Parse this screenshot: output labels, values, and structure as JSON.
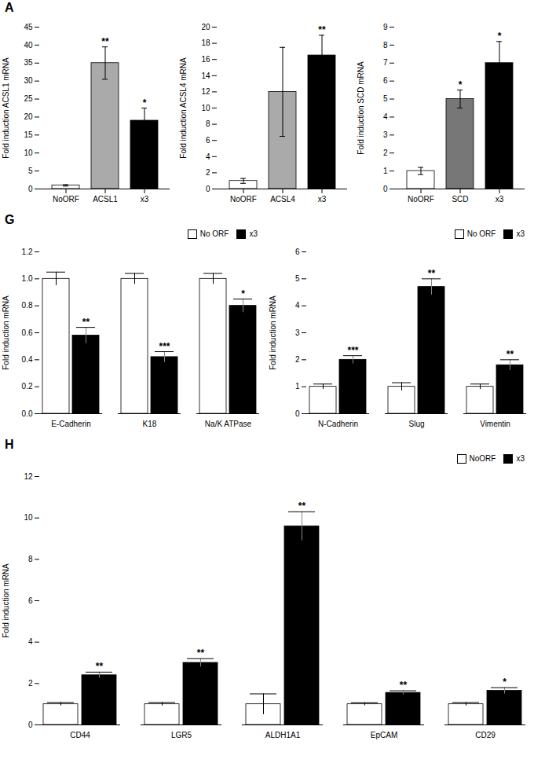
{
  "chart_data": [
    {
      "type": "bar",
      "title": "A",
      "categories": [
        "NoORF",
        "ACSL1",
        "x3"
      ],
      "values": [
        1,
        35,
        19
      ],
      "errors": [
        0.2,
        4.5,
        3.5
      ],
      "colors": [
        "white",
        "#aaaaaa",
        "black"
      ],
      "ylabel": "Fold induction ACSL1 mRNA",
      "ylim": [
        0,
        45
      ],
      "yticks": [
        0,
        5,
        10,
        15,
        20,
        25,
        30,
        35,
        40,
        45
      ],
      "annotations": [
        {
          "category": "ACSL1",
          "text": "**"
        },
        {
          "category": "x3",
          "text": "*"
        }
      ]
    },
    {
      "type": "bar",
      "categories": [
        "NoORF",
        "ACSL4",
        "x3"
      ],
      "values": [
        1,
        12,
        16.5
      ],
      "errors": [
        0.3,
        5.5,
        2.5
      ],
      "colors": [
        "white",
        "#aaaaaa",
        "black"
      ],
      "ylabel": "Fold induction ACSL4 mRNA",
      "ylim": [
        0,
        20
      ],
      "yticks": [
        0,
        2,
        4,
        6,
        8,
        10,
        12,
        14,
        16,
        18,
        20
      ],
      "annotations": [
        {
          "category": "x3",
          "text": "**"
        }
      ]
    },
    {
      "type": "bar",
      "categories": [
        "NoORF",
        "SCD",
        "x3"
      ],
      "values": [
        1,
        5,
        7
      ],
      "errors": [
        0.2,
        0.5,
        1.2
      ],
      "colors": [
        "white",
        "#777777",
        "black"
      ],
      "ylabel": "Fold induction SCD mRNA",
      "ylim": [
        0,
        9
      ],
      "yticks": [
        0,
        1,
        2,
        3,
        4,
        5,
        6,
        7,
        8,
        9
      ],
      "annotations": [
        {
          "category": "SCD",
          "text": "*"
        },
        {
          "category": "x3",
          "text": "*"
        }
      ]
    },
    {
      "type": "bar",
      "title": "G",
      "categories": [
        "E-Cadherin",
        "K18",
        "Na/K ATPase"
      ],
      "series": [
        {
          "name": "No ORF",
          "color": "white",
          "values": [
            1.0,
            1.0,
            1.0
          ],
          "errors": [
            0.05,
            0.04,
            0.04
          ]
        },
        {
          "name": "x3",
          "color": "black",
          "values": [
            0.58,
            0.42,
            0.8
          ],
          "errors": [
            0.06,
            0.04,
            0.05
          ]
        }
      ],
      "ylabel": "Fold induction mRNA",
      "ylim": [
        0,
        1.2
      ],
      "yticks": [
        {
          "value": 0,
          "label": "0.0"
        },
        0.2,
        0.4,
        0.6,
        0.8,
        {
          "value": 1.0,
          "label": "1.0"
        },
        1.2
      ],
      "legend": "upper right",
      "annotations": [
        {
          "category": "E-Cadherin",
          "series": "x3",
          "text": "**"
        },
        {
          "category": "K18",
          "series": "x3",
          "text": "***"
        },
        {
          "category": "Na/K ATPase",
          "series": "x3",
          "text": "*"
        }
      ]
    },
    {
      "type": "bar",
      "categories": [
        "N-Cadherin",
        "Slug",
        "Vimentin"
      ],
      "series": [
        {
          "name": "No ORF",
          "color": "white",
          "values": [
            1.0,
            1.0,
            1.0
          ],
          "errors": [
            0.1,
            0.15,
            0.1
          ]
        },
        {
          "name": "x3",
          "color": "black",
          "values": [
            2.0,
            4.7,
            1.8
          ],
          "errors": [
            0.15,
            0.3,
            0.2
          ]
        }
      ],
      "ylabel": "Fold induction mRNA",
      "ylim": [
        0,
        6
      ],
      "yticks": [
        0,
        1,
        2,
        3,
        4,
        5,
        6
      ],
      "legend": "upper right",
      "annotations": [
        {
          "category": "N-Cadherin",
          "series": "x3",
          "text": "***"
        },
        {
          "category": "Slug",
          "series": "x3",
          "text": "**"
        },
        {
          "category": "Vimentin",
          "series": "x3",
          "text": "**"
        }
      ]
    },
    {
      "type": "bar",
      "title": "H",
      "categories": [
        "CD44",
        "LGR5",
        "ALDH1A1",
        "EpCAM",
        "CD29"
      ],
      "series": [
        {
          "name": "NoORF",
          "color": "white",
          "values": [
            1.0,
            1.0,
            1.0,
            1.0,
            1.0
          ],
          "errors": [
            0.08,
            0.08,
            0.5,
            0.07,
            0.08
          ]
        },
        {
          "name": "x3",
          "color": "black",
          "values": [
            2.4,
            3.0,
            9.6,
            1.55,
            1.65
          ],
          "errors": [
            0.15,
            0.2,
            0.7,
            0.1,
            0.15
          ]
        }
      ],
      "ylabel": "Fold induction mRNA",
      "ylim": [
        0,
        12
      ],
      "yticks": [
        0,
        2,
        4,
        6,
        8,
        10,
        12
      ],
      "legend": "upper right",
      "annotations": [
        {
          "category": "CD44",
          "series": "x3",
          "text": "**"
        },
        {
          "category": "LGR5",
          "series": "x3",
          "text": "**"
        },
        {
          "category": "ALDH1A1",
          "series": "x3",
          "text": "**"
        },
        {
          "category": "EpCAM",
          "series": "x3",
          "text": "**"
        },
        {
          "category": "CD29",
          "series": "x3",
          "text": "*"
        }
      ]
    }
  ]
}
